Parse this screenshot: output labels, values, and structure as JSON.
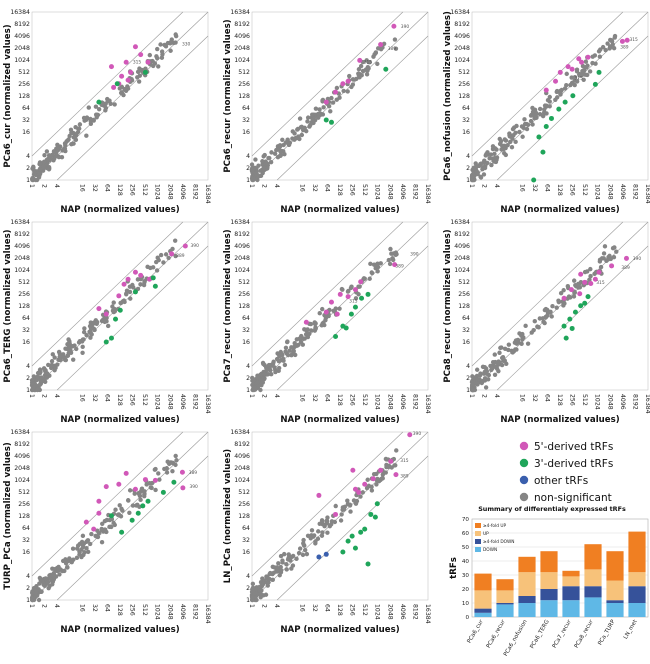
{
  "legend": {
    "items": [
      {
        "key": "5p",
        "label": "5'-derived tRFs",
        "color": "#d158b8"
      },
      {
        "key": "3p",
        "label": "3'-derived tRFs",
        "color": "#1fa55a"
      },
      {
        "key": "other",
        "label": "other tRFs",
        "color": "#3a5fad"
      },
      {
        "key": "ns",
        "label": "non-significant",
        "color": "#858585"
      }
    ]
  },
  "chart_data": [
    {
      "type": "scatter",
      "xlabel": "NAP (normalized values)",
      "ylabel": "PCa6_cur (normalized values)",
      "ticks": [
        "1",
        "2",
        "4",
        "16",
        "32",
        "64",
        "128",
        "256",
        "512",
        "1024",
        "2048",
        "4096",
        "8192",
        "16384"
      ],
      "log_base": 2,
      "xlim": [
        1,
        16384
      ],
      "ylim": [
        1,
        16384
      ],
      "labels": [
        {
          "x": 220,
          "y": 900,
          "text": "315"
        },
        {
          "x": 3300,
          "y": 2600,
          "text": "330"
        }
      ],
      "points": {
        "5p": [
          [
            80,
            700
          ],
          [
            140,
            400
          ],
          [
            180,
            900
          ],
          [
            230,
            500
          ],
          [
            300,
            2200
          ],
          [
            120,
            260
          ],
          [
            200,
            320
          ],
          [
            400,
            1400
          ],
          [
            90,
            210
          ],
          [
            600,
            900
          ]
        ],
        "3p": [
          [
            40,
            90
          ],
          [
            110,
            260
          ],
          [
            520,
            500
          ]
        ],
        "other": [],
        "ns_seed": 11
      }
    },
    {
      "type": "scatter",
      "xlabel": "NAP (normalized values)",
      "ylabel": "PCa6_recur (normalized values)",
      "ticks": [
        "1",
        "2",
        "4",
        "16",
        "32",
        "64",
        "128",
        "256",
        "512",
        "1024",
        "2048",
        "4096",
        "8192",
        "16384"
      ],
      "log_base": 2,
      "xlim": [
        1,
        16384
      ],
      "ylim": [
        1,
        16384
      ],
      "labels": [
        {
          "x": 3100,
          "y": 7000,
          "text": "390"
        },
        {
          "x": 400,
          "y": 900,
          "text": "315"
        },
        {
          "x": 1500,
          "y": 2000,
          "text": "389"
        }
      ],
      "points": {
        "5p": [
          [
            2500,
            7200
          ],
          [
            380,
            1000
          ],
          [
            150,
            260
          ],
          [
            100,
            160
          ],
          [
            60,
            90
          ],
          [
            1200,
            2500
          ],
          [
            200,
            300
          ]
        ],
        "3p": [
          [
            1600,
            600
          ],
          [
            60,
            32
          ],
          [
            80,
            28
          ]
        ],
        "other": [],
        "ns_seed": 23
      }
    },
    {
      "type": "scatter",
      "xlabel": "NAP (normalized values)",
      "ylabel": "PCa6_nofusion (normalized values)",
      "ticks": [
        "1",
        "2",
        "4",
        "16",
        "32",
        "64",
        "128",
        "256",
        "512",
        "1024",
        "2048",
        "4096",
        "8192",
        "16384"
      ],
      "log_base": 2,
      "xlim": [
        1,
        16384
      ],
      "ylim": [
        1,
        16384
      ],
      "labels": [
        {
          "x": 5000,
          "y": 3300,
          "text": "315"
        },
        {
          "x": 3000,
          "y": 2200,
          "text": "389"
        },
        {
          "x": 240,
          "y": 360,
          "text": "315"
        }
      ],
      "points": {
        "5p": [
          [
            5200,
            3200
          ],
          [
            100,
            300
          ],
          [
            130,
            500
          ],
          [
            200,
            700
          ],
          [
            420,
            900
          ],
          [
            360,
            1100
          ],
          [
            60,
            180
          ],
          [
            250,
            600
          ],
          [
            600,
            1200
          ],
          [
            4000,
            3000
          ]
        ],
        "3p": [
          [
            900,
            250
          ],
          [
            120,
            60
          ],
          [
            80,
            35
          ],
          [
            60,
            22
          ],
          [
            260,
            130
          ],
          [
            1100,
            500
          ],
          [
            40,
            12
          ],
          [
            50,
            5
          ],
          [
            170,
            90
          ],
          [
            30,
            1
          ]
        ],
        "other": [],
        "ns_seed": 37
      }
    },
    {
      "type": "scatter",
      "xlabel": "NAP (normalized values)",
      "ylabel": "PCa6_TERG (normalized values)",
      "ticks": [
        "1",
        "2",
        "4",
        "16",
        "32",
        "64",
        "128",
        "256",
        "512",
        "1024",
        "2048",
        "4096",
        "8192",
        "16384"
      ],
      "log_base": 2,
      "xlim": [
        1,
        16384
      ],
      "ylim": [
        1,
        16384
      ],
      "labels": [
        {
          "x": 5300,
          "y": 4200,
          "text": "390"
        },
        {
          "x": 2400,
          "y": 2400,
          "text": "389"
        }
      ],
      "points": {
        "5p": [
          [
            4700,
            4100
          ],
          [
            2200,
            2600
          ],
          [
            200,
            600
          ],
          [
            300,
            900
          ],
          [
            160,
            450
          ],
          [
            400,
            750
          ],
          [
            650,
            600
          ],
          [
            40,
            110
          ],
          [
            60,
            80
          ],
          [
            120,
            230
          ]
        ],
        "3p": [
          [
            800,
            650
          ],
          [
            100,
            60
          ],
          [
            60,
            16
          ],
          [
            80,
            20
          ],
          [
            300,
            290
          ],
          [
            130,
            100
          ],
          [
            900,
            400
          ]
        ],
        "other": [],
        "ns_seed": 41
      }
    },
    {
      "type": "scatter",
      "xlabel": "NAP (normalized values)",
      "ylabel": "PCa7_recur (normalized values)",
      "ticks": [
        "1",
        "2",
        "4",
        "16",
        "32",
        "64",
        "128",
        "256",
        "512",
        "1024",
        "2048",
        "4096",
        "8192",
        "16384"
      ],
      "log_base": 2,
      "xlim": [
        1,
        16384
      ],
      "ylim": [
        1,
        16384
      ],
      "labels": [
        {
          "x": 5200,
          "y": 2600,
          "text": "390"
        },
        {
          "x": 2300,
          "y": 1300,
          "text": "389"
        },
        {
          "x": 180,
          "y": 170,
          "text": "315"
        }
      ],
      "points": {
        "5p": [
          [
            200,
            220
          ],
          [
            130,
            250
          ],
          [
            80,
            160
          ],
          [
            60,
            90
          ],
          [
            300,
            330
          ],
          [
            110,
            80
          ],
          [
            400,
            520
          ],
          [
            20,
            50
          ],
          [
            2600,
            1400
          ]
        ],
        "3p": [
          [
            300,
            120
          ],
          [
            240,
            80
          ],
          [
            150,
            40
          ],
          [
            180,
            36
          ],
          [
            100,
            22
          ],
          [
            600,
            250
          ],
          [
            420,
            200
          ]
        ],
        "other": [],
        "ns_seed": 53
      }
    },
    {
      "type": "scatter",
      "xlabel": "NAP (normalized values)",
      "ylabel": "PCa8_recur (normalized values)",
      "ticks": [
        "1",
        "2",
        "4",
        "16",
        "32",
        "64",
        "128",
        "256",
        "512",
        "1024",
        "2048",
        "4096",
        "8192",
        "16384"
      ],
      "log_base": 2,
      "xlim": [
        1,
        16384
      ],
      "ylim": [
        1,
        16384
      ],
      "labels": [
        {
          "x": 6000,
          "y": 2000,
          "text": "390"
        },
        {
          "x": 3200,
          "y": 1200,
          "text": "389"
        },
        {
          "x": 800,
          "y": 500,
          "text": "315"
        }
      ],
      "points": {
        "5p": [
          [
            5000,
            2000
          ],
          [
            500,
            500
          ],
          [
            900,
            600
          ],
          [
            240,
            330
          ],
          [
            380,
            260
          ],
          [
            400,
            800
          ],
          [
            1100,
            900
          ],
          [
            700,
            470
          ],
          [
            160,
            200
          ],
          [
            2200,
            1300
          ]
        ],
        "3p": [
          [
            600,
            220
          ],
          [
            300,
            90
          ],
          [
            220,
            60
          ],
          [
            160,
            40
          ],
          [
            400,
            130
          ],
          [
            180,
            20
          ],
          [
            250,
            35
          ],
          [
            500,
            150
          ]
        ],
        "other": [],
        "ns_seed": 67
      }
    },
    {
      "type": "scatter",
      "xlabel": "NAP (normalized values)",
      "ylabel": "TURP_PCa (normalized values)",
      "ticks": [
        "1",
        "2",
        "4",
        "16",
        "32",
        "64",
        "128",
        "256",
        "512",
        "1024",
        "2048",
        "4096",
        "8192",
        "16384"
      ],
      "log_base": 2,
      "xlim": [
        1,
        16384
      ],
      "ylim": [
        1,
        16384
      ],
      "labels": [
        {
          "x": 4800,
          "y": 1600,
          "text": "389"
        },
        {
          "x": 5000,
          "y": 700,
          "text": "390"
        }
      ],
      "points": {
        "5p": [
          [
            4000,
            1600
          ],
          [
            4100,
            650
          ],
          [
            180,
            1500
          ],
          [
            520,
            1050
          ],
          [
            60,
            700
          ],
          [
            40,
            150
          ],
          [
            20,
            90
          ],
          [
            30,
            60
          ],
          [
            120,
            800
          ],
          [
            900,
            1000
          ],
          [
            300,
            600
          ],
          [
            40,
            300
          ]
        ],
        "3p": [
          [
            1400,
            500
          ],
          [
            600,
            300
          ],
          [
            250,
            100
          ],
          [
            80,
            130
          ],
          [
            2500,
            900
          ],
          [
            140,
            50
          ],
          [
            450,
            230
          ],
          [
            350,
            150
          ]
        ],
        "other": [],
        "ns_seed": 79
      }
    },
    {
      "type": "scatter",
      "xlabel": "NAP (normalized values)",
      "ylabel": "LN_PCa (normalized values)",
      "ticks": [
        "1",
        "2",
        "4",
        "16",
        "32",
        "64",
        "128",
        "256",
        "512",
        "1024",
        "2048",
        "4096",
        "8192",
        "16384"
      ],
      "log_base": 2,
      "xlim": [
        1,
        16384
      ],
      "ylim": [
        1,
        16384
      ],
      "labels": [
        {
          "x": 6000,
          "y": 15000,
          "text": "390"
        },
        {
          "x": 3000,
          "y": 3200,
          "text": "315"
        },
        {
          "x": 3000,
          "y": 1300,
          "text": "389"
        }
      ],
      "points": {
        "5p": [
          [
            6000,
            14000
          ],
          [
            2100,
            3000
          ],
          [
            1200,
            1800
          ],
          [
            2800,
            1400
          ],
          [
            260,
            1800
          ],
          [
            360,
            500
          ],
          [
            500,
            800
          ],
          [
            100,
            140
          ],
          [
            40,
            420
          ],
          [
            300,
            600
          ],
          [
            800,
            1100
          ]
        ],
        "3p": [
          [
            900,
            120
          ],
          [
            400,
            50
          ],
          [
            300,
            20
          ],
          [
            500,
            60
          ],
          [
            700,
            140
          ],
          [
            200,
            30
          ],
          [
            150,
            16
          ],
          [
            1000,
            260
          ],
          [
            600,
            8
          ],
          [
            250,
            40
          ]
        ],
        "other": [
          [
            40,
            12
          ],
          [
            60,
            14
          ]
        ],
        "ns_seed": 97
      }
    },
    {
      "type": "bar",
      "title": "Summary of differentialy expressed tRFs",
      "ylabel": "tRFs",
      "ylim": [
        0,
        70
      ],
      "yticks": [
        "0",
        "10",
        "20",
        "30",
        "40",
        "50",
        "60",
        "70"
      ],
      "categories": [
        "PCa6_cur",
        "PCa6_recur",
        "PCa6_nofusion",
        "PCa6_TERG",
        "PCa7_recur",
        "PCa8_recur",
        "PCa_TURP",
        "LN_met"
      ],
      "series": [
        {
          "name": "DOWN",
          "color": "#5fb8e6",
          "values": [
            3,
            9,
            10,
            12,
            12,
            14,
            10,
            10
          ]
        },
        {
          "name": "≥4-fold DOWN",
          "color": "#36529a",
          "values": [
            3,
            1,
            5,
            8,
            10,
            8,
            2,
            12
          ]
        },
        {
          "name": "UP",
          "color": "#f7c27a",
          "values": [
            13,
            9,
            17,
            12,
            7,
            12,
            14,
            10
          ]
        },
        {
          "name": "≥4-fold UP",
          "color": "#f07f22",
          "values": [
            12,
            8,
            11,
            15,
            4,
            18,
            21,
            29
          ]
        }
      ]
    }
  ]
}
